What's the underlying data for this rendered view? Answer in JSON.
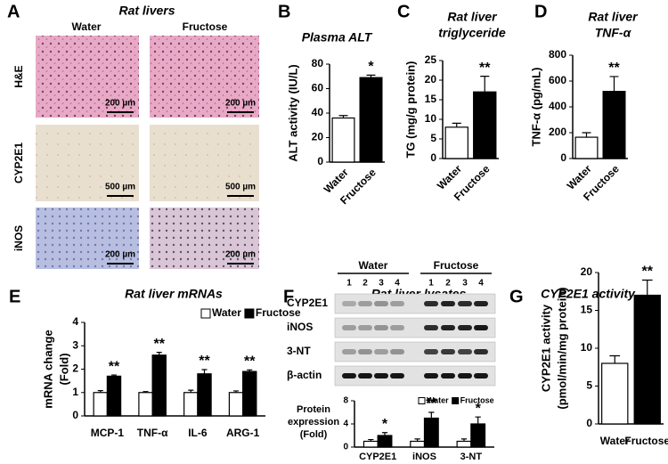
{
  "panel_letters": [
    "A",
    "B",
    "C",
    "D",
    "E",
    "F",
    "G"
  ],
  "histology": {
    "title": "Rat livers",
    "columns": [
      "Water",
      "Fructose"
    ],
    "rows": [
      {
        "label": "H&E",
        "scale_bars": [
          "200 µm",
          "200 µm"
        ]
      },
      {
        "label": "CYP2E1",
        "scale_bars": [
          "500 µm",
          "500 µm"
        ]
      },
      {
        "label": "iNOS",
        "scale_bars": [
          "200 µm",
          "200 µm"
        ]
      }
    ]
  },
  "western": {
    "title": "Rat liver lysates",
    "groups": [
      "Water",
      "Fructose"
    ],
    "lanes": [
      "1",
      "2",
      "3",
      "4",
      "1",
      "2",
      "3",
      "4"
    ],
    "bands": [
      "CYP2E1",
      "iNOS",
      "3-NT",
      "β-actin"
    ]
  },
  "chart_data": [
    {
      "type": "bar",
      "title": [
        "Plasma ALT"
      ],
      "y_label": [
        "ALT activity (IU/L)"
      ],
      "categories": [
        "Water",
        "Fructose"
      ],
      "values": [
        36,
        69
      ],
      "errors": [
        2,
        2
      ],
      "colors": [
        "#ffffff",
        "#000000"
      ],
      "annotations": [
        null,
        "*"
      ],
      "ylim": [
        0,
        80
      ],
      "yticks": [
        0,
        20,
        40,
        60,
        80
      ]
    },
    {
      "type": "bar",
      "title": [
        "Rat liver",
        "triglyceride"
      ],
      "y_label": [
        "TG (mg/g protein)"
      ],
      "categories": [
        "Water",
        "Fructose"
      ],
      "values": [
        8,
        17
      ],
      "errors": [
        1,
        4
      ],
      "colors": [
        "#ffffff",
        "#000000"
      ],
      "annotations": [
        null,
        "**"
      ],
      "ylim": [
        0,
        25
      ],
      "yticks": [
        0,
        5,
        10,
        15,
        20,
        25
      ]
    },
    {
      "type": "bar",
      "title": [
        "Rat liver",
        "TNF-α"
      ],
      "y_label": [
        "TNF-α (pg/mL)"
      ],
      "categories": [
        "Water",
        "Fructose"
      ],
      "values": [
        165,
        520
      ],
      "errors": [
        35,
        115
      ],
      "colors": [
        "#ffffff",
        "#000000"
      ],
      "annotations": [
        null,
        "**"
      ],
      "ylim": [
        0,
        800
      ],
      "yticks": [
        0,
        200,
        400,
        600,
        800
      ]
    },
    {
      "type": "grouped_bar",
      "title": [
        "Rat liver mRNAs"
      ],
      "y_label": [
        "mRNA change",
        "(Fold)"
      ],
      "categories": [
        "MCP-1",
        "TNF-α",
        "IL-6",
        "ARG-1"
      ],
      "series": [
        {
          "name": "Water",
          "color": "#ffffff",
          "values": [
            1,
            1,
            1,
            1
          ],
          "errors": [
            0.08,
            0.04,
            0.1,
            0.07
          ]
        },
        {
          "name": "Fructose",
          "color": "#000000",
          "values": [
            1.7,
            2.6,
            1.8,
            1.9
          ],
          "errors": [
            0.05,
            0.12,
            0.18,
            0.07
          ]
        }
      ],
      "annotations": [
        "**",
        "**",
        "**",
        "**"
      ],
      "ylim": [
        0,
        4
      ],
      "yticks": [
        0,
        1,
        2,
        3,
        4
      ]
    },
    {
      "type": "grouped_bar",
      "y_label": [
        "Protein",
        "expression",
        "(Fold)"
      ],
      "categories": [
        "CYP2E1",
        "iNOS",
        "3-NT"
      ],
      "series": [
        {
          "name": "Water",
          "color": "#ffffff",
          "values": [
            1,
            1,
            1
          ],
          "errors": [
            0.3,
            0.4,
            0.4
          ]
        },
        {
          "name": "Fructose",
          "color": "#000000",
          "values": [
            2,
            5,
            4
          ],
          "errors": [
            0.5,
            1,
            1.2
          ]
        }
      ],
      "annotations": [
        "*",
        "**",
        "*"
      ],
      "ylim": [
        0,
        8
      ],
      "yticks": [
        0,
        4,
        8
      ]
    },
    {
      "type": "bar",
      "title": [
        "CYP2E1 activity"
      ],
      "y_label": [
        "CYP2E1  activity",
        "(pmol/min/mg protein)"
      ],
      "categories": [
        "Water",
        "Fructose"
      ],
      "values": [
        8,
        17
      ],
      "errors": [
        1,
        2
      ],
      "colors": [
        "#ffffff",
        "#000000"
      ],
      "annotations": [
        null,
        "**"
      ],
      "ylim": [
        0,
        20
      ],
      "yticks": [
        0,
        5,
        10,
        15,
        20
      ]
    }
  ]
}
